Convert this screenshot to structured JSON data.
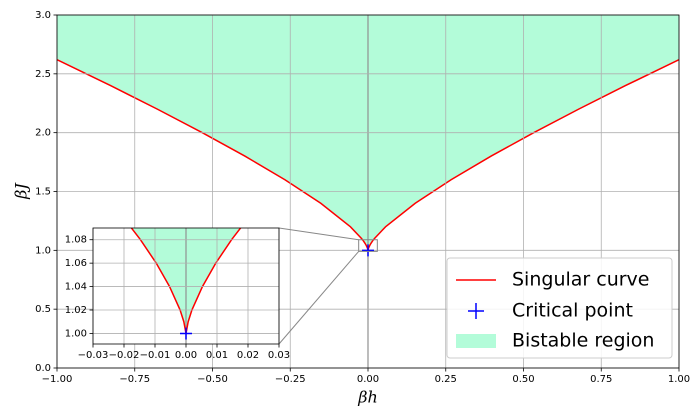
{
  "chart_data": {
    "type": "line",
    "x_label": "βh",
    "y_label": "βJ",
    "xlim": [
      -1,
      1
    ],
    "ylim": [
      0,
      3
    ],
    "xticks": [
      {
        "value": -1,
        "label": "−1.00"
      },
      {
        "value": -0.75,
        "label": "−0.75"
      },
      {
        "value": -0.5,
        "label": "−0.50"
      },
      {
        "value": -0.25,
        "label": "−0.25"
      },
      {
        "value": 0,
        "label": "0.00"
      },
      {
        "value": 0.25,
        "label": "0.25"
      },
      {
        "value": 0.5,
        "label": "0.50"
      },
      {
        "value": 0.75,
        "label": "0.75"
      },
      {
        "value": 1,
        "label": "1.00"
      }
    ],
    "yticks": [
      {
        "value": 0,
        "label": "0.0"
      },
      {
        "value": 0.5,
        "label": "0.5"
      },
      {
        "value": 1,
        "label": "1.0"
      },
      {
        "value": 1.5,
        "label": "1.5"
      },
      {
        "value": 2,
        "label": "2.0"
      },
      {
        "value": 2.5,
        "label": "2.5"
      },
      {
        "value": 3,
        "label": "3.0"
      }
    ],
    "grid": true,
    "legend": "lower right",
    "series": [
      {
        "name": "Singular curve",
        "color": "#ff0000",
        "x": [
          -1,
          -0.8278,
          -0.6775,
          -0.5328,
          -0.3953,
          -0.2671,
          -0.1519,
          -0.0564,
          -0.0205,
          -0.0147,
          -0.0096,
          -0.0053,
          -0.0019,
          -0.0007,
          0,
          0.0007,
          0.0019,
          0.0053,
          0.0096,
          0.0147,
          0.0205,
          0.0564,
          0.1519,
          0.2671,
          0.3953,
          0.5328,
          0.6775,
          0.8278,
          1
        ],
        "values": [
          2.62,
          2.4,
          2.2,
          2.0,
          1.8,
          1.6,
          1.4,
          1.2,
          1.1,
          1.08,
          1.06,
          1.04,
          1.02,
          1.01,
          1,
          1.01,
          1.02,
          1.04,
          1.06,
          1.08,
          1.1,
          1.2,
          1.4,
          1.6,
          1.8,
          2.0,
          2.2,
          2.4,
          2.62
        ]
      },
      {
        "name": "Critical point",
        "color": "#0000ff",
        "marker": "+",
        "x": [
          0
        ],
        "values": [
          1
        ]
      },
      {
        "name": "Bistable region",
        "color": "#b3fcd9"
      }
    ],
    "inset": {
      "xlim": [
        -0.03,
        0.03
      ],
      "ylim": [
        0.991,
        1.09
      ],
      "xticks": [
        {
          "value": -0.03,
          "label": "−0.03"
        },
        {
          "value": -0.02,
          "label": "−0.02"
        },
        {
          "value": -0.01,
          "label": "−0.01"
        },
        {
          "value": 0,
          "label": "0.00"
        },
        {
          "value": 0.01,
          "label": "0.01"
        },
        {
          "value": 0.02,
          "label": "0.02"
        },
        {
          "value": 0.03,
          "label": "0.03"
        }
      ],
      "yticks": [
        {
          "value": 1,
          "label": "1.00"
        },
        {
          "value": 1.02,
          "label": "1.02"
        },
        {
          "value": 1.04,
          "label": "1.04"
        },
        {
          "value": 1.06,
          "label": "1.06"
        },
        {
          "value": 1.08,
          "label": "1.08"
        }
      ]
    }
  }
}
